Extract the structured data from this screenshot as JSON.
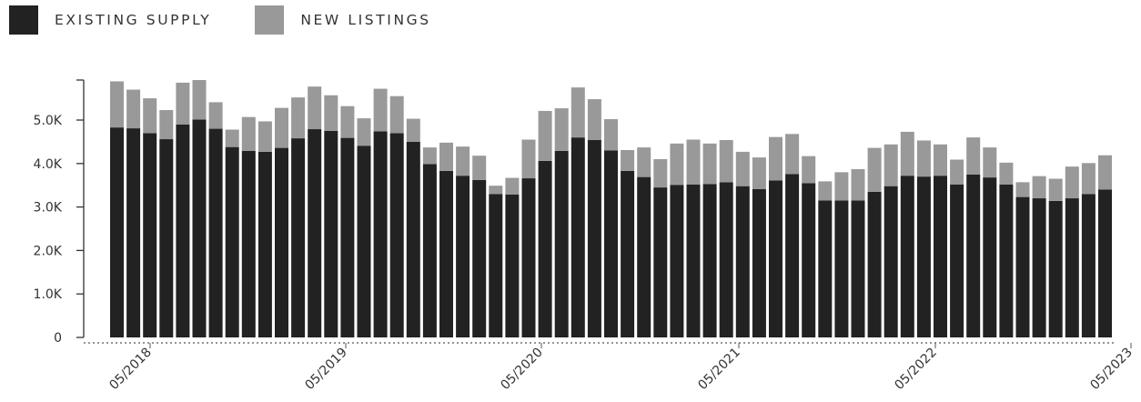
{
  "chart_data": {
    "type": "bar",
    "stacked": true,
    "legend": {
      "placement": "top-left",
      "items": [
        {
          "name": "EXISTING SUPPLY",
          "color": "#222222"
        },
        {
          "name": "NEW LISTINGS",
          "color": "#999999"
        }
      ]
    },
    "series": [
      {
        "name": "EXISTING SUPPLY",
        "color": "#222222",
        "values": [
          4830,
          4810,
          4700,
          4560,
          4900,
          5010,
          4800,
          4380,
          4290,
          4270,
          4360,
          4580,
          4790,
          4750,
          4590,
          4410,
          4740,
          4700,
          4500,
          3990,
          3830,
          3720,
          3620,
          3300,
          3290,
          3660,
          4060,
          4290,
          4600,
          4540,
          4300,
          3830,
          3690,
          3450,
          3510,
          3520,
          3530,
          3570,
          3480,
          3410,
          3610,
          3760,
          3550,
          3150,
          3150,
          3150,
          3350,
          3480,
          3720,
          3700,
          3720,
          3520,
          3750,
          3680,
          3520,
          3230,
          3200,
          3140,
          3200,
          3300,
          3400
        ]
      },
      {
        "name": "NEW LISTINGS",
        "color": "#999999",
        "values": [
          1060,
          890,
          800,
          670,
          960,
          910,
          610,
          400,
          780,
          700,
          920,
          940,
          980,
          820,
          730,
          630,
          980,
          850,
          530,
          380,
          650,
          670,
          560,
          190,
          380,
          890,
          1150,
          980,
          1150,
          940,
          720,
          480,
          680,
          650,
          950,
          1030,
          930,
          970,
          790,
          730,
          1000,
          920,
          620,
          440,
          650,
          720,
          1010,
          960,
          1010,
          830,
          720,
          570,
          850,
          690,
          500,
          340,
          510,
          510,
          730,
          710,
          790
        ]
      }
    ],
    "x_tick_labels": [
      "05/2018",
      "05/2019",
      "05/2020",
      "05/2021",
      "05/2022",
      "05/2023"
    ],
    "y_ticks": [
      0,
      1000,
      2000,
      3000,
      4000,
      5000
    ],
    "y_tick_labels": [
      "0",
      "1.0K",
      "2.0K",
      "3.0K",
      "4.0K",
      "5.0K"
    ],
    "ylim": [
      0,
      5900
    ],
    "grid": false,
    "title": "",
    "xlabel": "",
    "ylabel": ""
  }
}
